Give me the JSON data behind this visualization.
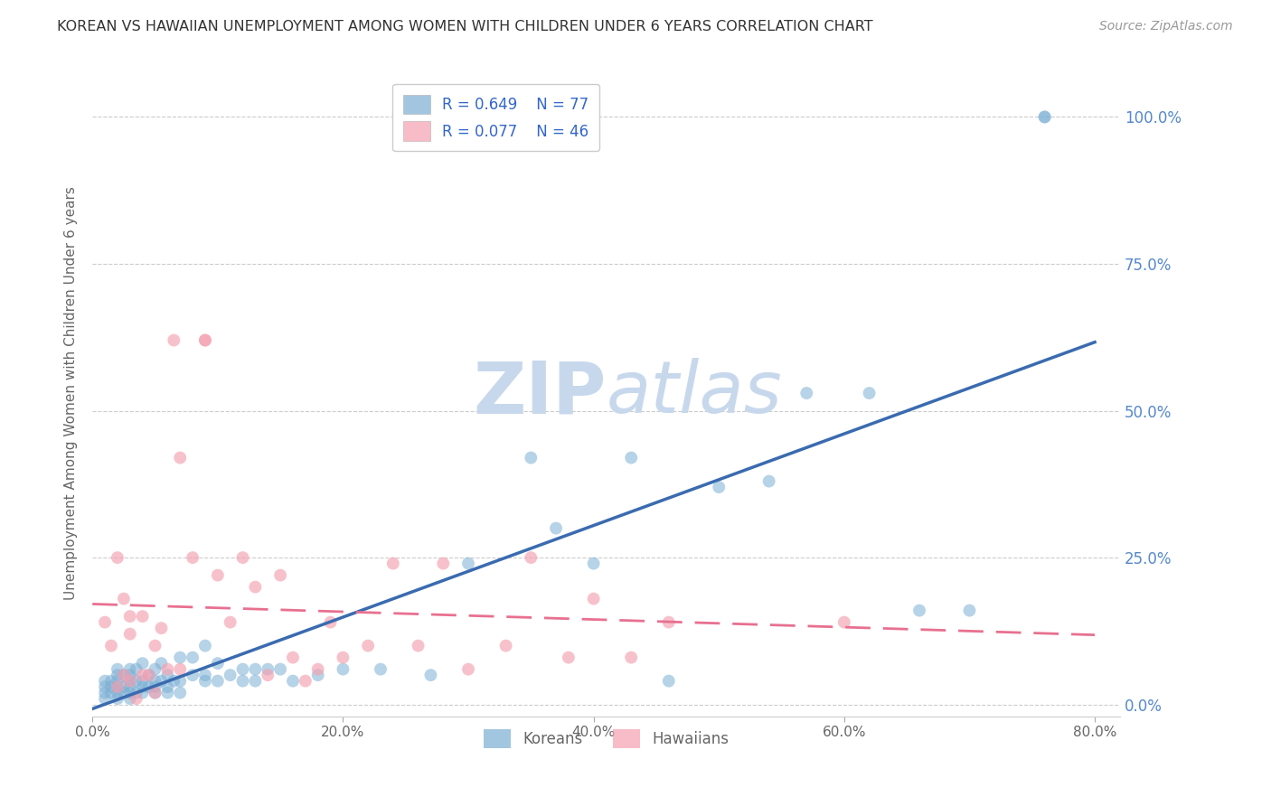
{
  "title": "KOREAN VS HAWAIIAN UNEMPLOYMENT AMONG WOMEN WITH CHILDREN UNDER 6 YEARS CORRELATION CHART",
  "source": "Source: ZipAtlas.com",
  "ylabel": "Unemployment Among Women with Children Under 6 years",
  "xlabel_ticks": [
    "0.0%",
    "20.0%",
    "40.0%",
    "60.0%",
    "80.0%"
  ],
  "ylabel_ticks_right": [
    "100.0%",
    "75.0%",
    "50.0%",
    "25.0%",
    "0.0%"
  ],
  "xlim": [
    0.0,
    0.82
  ],
  "ylim": [
    -0.02,
    1.08
  ],
  "koreans_R": 0.649,
  "koreans_N": 77,
  "hawaiians_R": 0.077,
  "hawaiians_N": 46,
  "korean_color": "#7BAFD4",
  "hawaiian_color": "#F4A0B0",
  "trendline_korean_color": "#3A6BB0",
  "trendline_hawaiian_color": "#E87090",
  "watermark_color": "#C8D8EC",
  "background_color": "#FFFFFF",
  "grid_color": "#CCCCCC",
  "right_axis_color": "#5588CC",
  "title_fontsize": 11.5,
  "source_fontsize": 10,
  "korean_x": [
    0.01,
    0.01,
    0.01,
    0.01,
    0.015,
    0.015,
    0.015,
    0.02,
    0.02,
    0.02,
    0.02,
    0.02,
    0.02,
    0.025,
    0.025,
    0.025,
    0.03,
    0.03,
    0.03,
    0.03,
    0.03,
    0.03,
    0.035,
    0.035,
    0.035,
    0.04,
    0.04,
    0.04,
    0.04,
    0.045,
    0.045,
    0.05,
    0.05,
    0.05,
    0.05,
    0.055,
    0.055,
    0.06,
    0.06,
    0.06,
    0.065,
    0.07,
    0.07,
    0.07,
    0.08,
    0.08,
    0.09,
    0.09,
    0.09,
    0.1,
    0.1,
    0.11,
    0.12,
    0.12,
    0.13,
    0.13,
    0.14,
    0.15,
    0.16,
    0.18,
    0.2,
    0.23,
    0.27,
    0.3,
    0.35,
    0.37,
    0.4,
    0.43,
    0.46,
    0.5,
    0.54,
    0.57,
    0.62,
    0.66,
    0.7,
    0.76,
    0.76
  ],
  "korean_y": [
    0.01,
    0.02,
    0.03,
    0.04,
    0.02,
    0.03,
    0.04,
    0.01,
    0.02,
    0.03,
    0.04,
    0.05,
    0.06,
    0.02,
    0.03,
    0.05,
    0.01,
    0.02,
    0.03,
    0.04,
    0.05,
    0.06,
    0.02,
    0.04,
    0.06,
    0.02,
    0.03,
    0.04,
    0.07,
    0.03,
    0.05,
    0.02,
    0.03,
    0.04,
    0.06,
    0.04,
    0.07,
    0.02,
    0.03,
    0.05,
    0.04,
    0.02,
    0.04,
    0.08,
    0.05,
    0.08,
    0.04,
    0.05,
    0.1,
    0.04,
    0.07,
    0.05,
    0.04,
    0.06,
    0.04,
    0.06,
    0.06,
    0.06,
    0.04,
    0.05,
    0.06,
    0.06,
    0.05,
    0.24,
    0.42,
    0.3,
    0.24,
    0.42,
    0.04,
    0.37,
    0.38,
    0.53,
    0.53,
    0.16,
    0.16,
    1.0,
    1.0
  ],
  "hawaiian_x": [
    0.01,
    0.015,
    0.02,
    0.02,
    0.025,
    0.025,
    0.03,
    0.03,
    0.03,
    0.035,
    0.04,
    0.04,
    0.045,
    0.05,
    0.05,
    0.055,
    0.06,
    0.065,
    0.07,
    0.07,
    0.08,
    0.09,
    0.09,
    0.1,
    0.11,
    0.12,
    0.13,
    0.14,
    0.15,
    0.16,
    0.17,
    0.18,
    0.19,
    0.2,
    0.22,
    0.24,
    0.26,
    0.28,
    0.3,
    0.33,
    0.35,
    0.38,
    0.4,
    0.43,
    0.46,
    0.6
  ],
  "hawaiian_y": [
    0.14,
    0.1,
    0.03,
    0.25,
    0.05,
    0.18,
    0.04,
    0.12,
    0.15,
    0.01,
    0.05,
    0.15,
    0.05,
    0.02,
    0.1,
    0.13,
    0.06,
    0.62,
    0.06,
    0.42,
    0.25,
    0.62,
    0.62,
    0.22,
    0.14,
    0.25,
    0.2,
    0.05,
    0.22,
    0.08,
    0.04,
    0.06,
    0.14,
    0.08,
    0.1,
    0.24,
    0.1,
    0.24,
    0.06,
    0.1,
    0.25,
    0.08,
    0.18,
    0.08,
    0.14,
    0.14
  ],
  "marker_size": 100
}
